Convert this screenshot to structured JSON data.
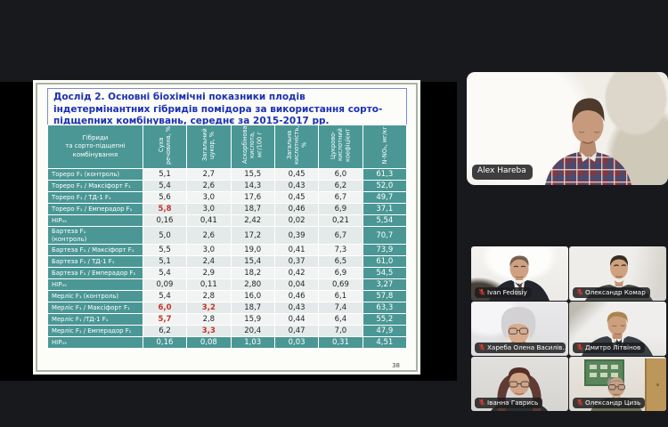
{
  "slide": {
    "title": "Дослід 2. Основні біохімічні показники плодів індетермінантних гібридів помідора за використання сорто-підщепних комбінувань, середнє за 2015-2017 рр.",
    "page_number": "38",
    "table": {
      "headers": [
        "Гібриди\nта сорто-підщепні\nкомбінування",
        "Суха речовина, %",
        "Загальний цукор, %",
        "Аскорбінова кислота, мг/100 г",
        "Загальна кислотність, %",
        "Цукрово-кислотний коефіцієнт",
        "N-NO₃, мг/кг"
      ],
      "rows": [
        {
          "label": "Тореро F₁ (контроль)",
          "values": [
            "5,1",
            "2,7",
            "15,5",
            "0,45",
            "6,0",
            "61,3"
          ],
          "red": []
        },
        {
          "label": "Тореро F₁ / Максіфорт F₁",
          "values": [
            "5,4",
            "2,6",
            "14,3",
            "0,43",
            "6,2",
            "52,0"
          ],
          "red": []
        },
        {
          "label": "Тореро F₁ / ТД-1 F₁",
          "values": [
            "5,6",
            "3,0",
            "17,6",
            "0,45",
            "6,7",
            "49,7"
          ],
          "red": []
        },
        {
          "label": "Тореро F₁ / Емперадор F₁",
          "values": [
            "5,8",
            "3,0",
            "18,7",
            "0,46",
            "6,9",
            "37,1"
          ],
          "red": [
            0
          ]
        },
        {
          "label": "НІР₀₅",
          "values": [
            "0,16",
            "0,41",
            "2,42",
            "0,02",
            "0,21",
            "5,54"
          ],
          "red": [],
          "type": "hip"
        },
        {
          "label": "Бартеза F₁\n(контроль)",
          "values": [
            "5,0",
            "2,6",
            "17,2",
            "0,39",
            "6,7",
            "70,7"
          ],
          "red": []
        },
        {
          "label": "Бартеза F₁ / Максіфорт F₁",
          "values": [
            "5,5",
            "3,0",
            "19,0",
            "0,41",
            "7,3",
            "73,9"
          ],
          "red": []
        },
        {
          "label": "Бартеза F₁ / ТД-1 F₁",
          "values": [
            "5,1",
            "2,4",
            "15,4",
            "0,37",
            "6,5",
            "61,0"
          ],
          "red": []
        },
        {
          "label": "Бартеза F₁ / Емперадор F₁",
          "values": [
            "5,4",
            "2,9",
            "18,2",
            "0,42",
            "6,9",
            "54,5"
          ],
          "red": []
        },
        {
          "label": "НІР₀₅",
          "values": [
            "0,09",
            "0,11",
            "2,80",
            "0,04",
            "0,69",
            "3,27"
          ],
          "red": [],
          "type": "hip"
        },
        {
          "label": "Мерліс F₁ (контроль)",
          "values": [
            "5,4",
            "2,8",
            "16,0",
            "0,46",
            "6,1",
            "57,8"
          ],
          "red": []
        },
        {
          "label": "Мерліс F₁ / Максіфорт F₁",
          "values": [
            "6,0",
            "3,2",
            "18,7",
            "0,43",
            "7,4",
            "63,3"
          ],
          "red": [
            0,
            1
          ]
        },
        {
          "label": "Мерліс F₁ /ТД-1 F₁",
          "values": [
            "5,7",
            "2,8",
            "15,9",
            "0,44",
            "6,4",
            "55,2"
          ],
          "red": [
            0
          ]
        },
        {
          "label": "Мерліс F₁ / Емперадор F₁",
          "values": [
            "6,2",
            "3,3",
            "20,4",
            "0,47",
            "7,0",
            "47,9"
          ],
          "red": [
            1
          ]
        },
        {
          "label": "НІР₀₅",
          "values": [
            "0,16",
            "0,08",
            "1,03",
            "0,03",
            "0,31",
            "4,51"
          ],
          "red": [],
          "type": "hip-full"
        }
      ]
    }
  },
  "speaker": {
    "name": "Alex Hareba",
    "muted": false
  },
  "participants": [
    {
      "name": "Ivan Fedosiy",
      "muted": true
    },
    {
      "name": "Олександр Комар",
      "muted": true
    },
    {
      "name": "Хареба Олена Василів...",
      "muted": true
    },
    {
      "name": "Дмитро Літвінов",
      "muted": true
    },
    {
      "name": "Іванна Гаврись",
      "muted": true
    },
    {
      "name": "Олександр Цизь",
      "muted": true
    }
  ],
  "colors": {
    "table_teal": "#4a9795",
    "highlight_red": "#c23429",
    "title_blue": "#1b2fb5",
    "mic_red": "#e23b30"
  }
}
